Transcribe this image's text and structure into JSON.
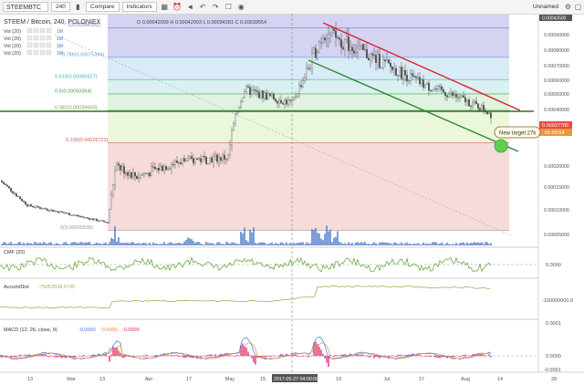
{
  "toolbar": {
    "symbol": "STEEMBTC",
    "interval": "240",
    "compare_label": "Compare",
    "indicators_label": "Indicators",
    "layout_name": "Unnamed",
    "icons": [
      "chart-style-icon",
      "indicators-icon",
      "template-icon",
      "alert-icon",
      "replay-icon",
      "undo-icon",
      "redo-icon",
      "save-icon",
      "camera-icon",
      "settings-icon",
      "fullscreen-icon"
    ]
  },
  "legend": {
    "title": "STEEM / Bitcoin, 240, POLONIEX",
    "ohlc": "O 0.00042003 H 0.00042003 L 0.00034281 C 0.00039554",
    "vol_rows": [
      "Vol (20)",
      "Vol (20)",
      "Vol (20)",
      "Vol (20)"
    ],
    "vol_badges": [
      "1M",
      "1M",
      "1M",
      "1M"
    ]
  },
  "colors": {
    "candles": "#4a4a4a",
    "downtrend": "#e0202e",
    "channel": "#2e8b2e",
    "level_green": "#1f7a1f",
    "cmf": "#5aa02c",
    "accdist": "#b0a855",
    "macd": "#3d7bd8",
    "signal": "#e88a3c",
    "histogram": "#e0206a",
    "volume": "#3d6fc8",
    "target_circle": "#5fcf4f",
    "price_badge_red": "#e74c3c",
    "price_badge_orange": "#e89a3a"
  },
  "annotation": {
    "target_label": "New target 27k"
  },
  "price_badges": {
    "current": "0.00037780",
    "countdown": "01:00:04",
    "top": "0.00043500"
  },
  "indicator_labels": {
    "cmf": "CMF (20)",
    "accdist": "Accum/Dist",
    "accdist_value": "-75053538.5745",
    "macd": "MACD (12, 26, close, 9)",
    "macd_values": [
      "-0.0000",
      "-0.0000",
      "-0.0000"
    ]
  },
  "crosshair": {
    "date_label": "2017-05-27 04:00:00"
  },
  "chart_data": {
    "type": "candlestick",
    "title": "STEEM / Bitcoin, 240, POLONIEX",
    "x_ticks": [
      "13",
      "Mar",
      "13",
      "Apr",
      "17",
      "May",
      "15",
      "Jun",
      "19",
      "Jul",
      "17",
      "Aug",
      "14",
      "28"
    ],
    "y_ticks": [
      "0.00090000",
      "0.00080000",
      "0.00070000",
      "0.00060000",
      "0.00050000",
      "0.00040000",
      "0.00030000",
      "0.00020000",
      "0.00015000",
      "0.00010000",
      "0.00005000"
    ],
    "fib_levels": [
      {
        "label": "1(0.00094392)",
        "value": 0.00094392,
        "color": "#c9c8ee"
      },
      {
        "label": "0.786(0.00075394)",
        "value": 0.00075394,
        "color": "#cfe6f5"
      },
      {
        "label": "0.618(0.00060527)",
        "value": 0.00060527,
        "color": "#cfeeee"
      },
      {
        "label": "0.5(0.00050064)",
        "value": 0.00050064,
        "color": "#d8f0d8"
      },
      {
        "label": "0.382(0.00039600)",
        "value": 0.000396,
        "color": "#e6f5d2"
      },
      {
        "label": "0.236(0.00026722)",
        "value": 0.00026722,
        "color": "#f5d2d2"
      },
      {
        "label": "0(0.00005839)",
        "value": 5.839e-05,
        "color": "#f5d2d2"
      }
    ],
    "series": [
      {
        "name": "STEEM / Bitcoin",
        "x": [
          "Feb 13",
          "Feb 27",
          "Mar 13",
          "Mar 20",
          "Apr 3",
          "Apr 17",
          "May 1",
          "May 15",
          "May 27",
          "Jun 1",
          "Jun 15",
          "Jun 29",
          "Jul 13",
          "Jul 27",
          "Aug 10"
        ],
        "values": [
          0.000165,
          0.00011,
          7.4e-05,
          0.0002,
          0.000175,
          0.000215,
          0.000225,
          0.00053,
          0.00044,
          0.00092,
          0.00078,
          0.00065,
          0.00055,
          0.00047,
          0.000378
        ]
      }
    ],
    "cmf_axis": [
      "0.0000"
    ],
    "accdist_axis": [
      "-100000000.0"
    ],
    "macd_axis": [
      "0.0001",
      "0.0000",
      "-0.0001"
    ]
  }
}
